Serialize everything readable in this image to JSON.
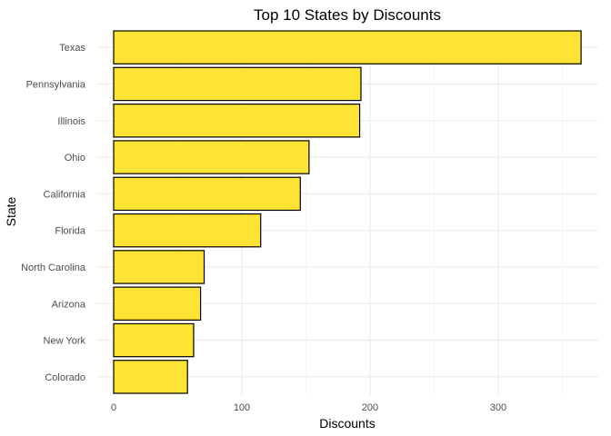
{
  "chart_data": {
    "type": "bar",
    "orientation": "horizontal",
    "title": "Top 10 States by Discounts",
    "xlabel": "Discounts",
    "ylabel": "State",
    "categories": [
      "Texas",
      "Pennsylvania",
      "Illinois",
      "Ohio",
      "California",
      "Florida",
      "North Carolina",
      "Arizona",
      "New York",
      "Colorado"
    ],
    "values": [
      364.6,
      192.9,
      191.9,
      152.4,
      145.6,
      114.7,
      70.6,
      67.8,
      62.4,
      57.6
    ],
    "xlim": [
      0,
      382
    ],
    "xticks": [
      0,
      100,
      200,
      300
    ],
    "xtick_labels": [
      "0",
      "100",
      "200",
      "300"
    ],
    "grid": true,
    "legend": "none",
    "colors": {
      "bar_fill": "#FDE333",
      "bar_stroke": "#000000",
      "grid": "#EBEBEB"
    }
  }
}
